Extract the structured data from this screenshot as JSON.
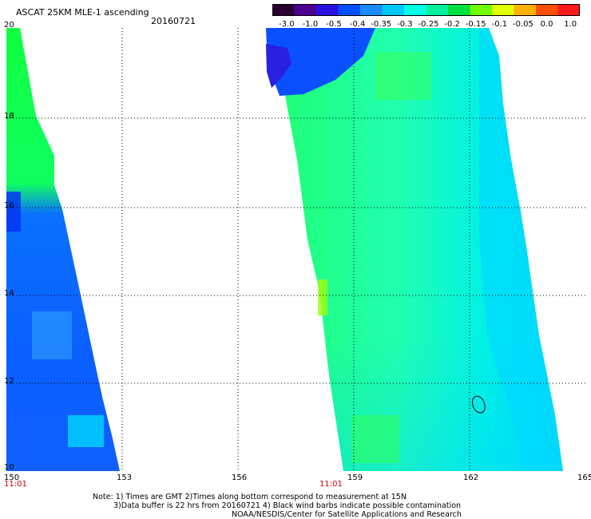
{
  "header": {
    "title": "ASCAT 25KM MLE-1 ascending",
    "date": "20160721"
  },
  "colorbar": {
    "labels": [
      "-3.0",
      "-1.0",
      "-0.5",
      "-0.4",
      "-0.35",
      "-0.3",
      "-0.25",
      "-0.2",
      "-0.15",
      "-0.1",
      "-0.05",
      "0.0",
      "1.0"
    ],
    "colors": [
      "#2a0030",
      "#4b0090",
      "#2a10e0",
      "#0050ff",
      "#1a8cff",
      "#00c8ff",
      "#00ffe6",
      "#00f0a0",
      "#00e040",
      "#70ff00",
      "#e0ff00",
      "#ffb000",
      "#ff5000",
      "#ff1a1a"
    ]
  },
  "axes": {
    "x_ticks": [
      "150",
      "153",
      "156",
      "159",
      "162",
      "165"
    ],
    "y_ticks": [
      "20",
      "18",
      "16",
      "14",
      "12",
      "10"
    ],
    "time_labels": [
      "11:01",
      "11:01"
    ]
  },
  "footer": {
    "line1": "Note: 1) Times are GMT 2)Times along bottom correspond to measurement at 15N",
    "line2": "3)Data buffer is 22 hrs from 20160721 4) Black wind barbs indicate possible contamination",
    "line3": "NOAA/NESDIS/Center for Satellite Applications and Research"
  }
}
